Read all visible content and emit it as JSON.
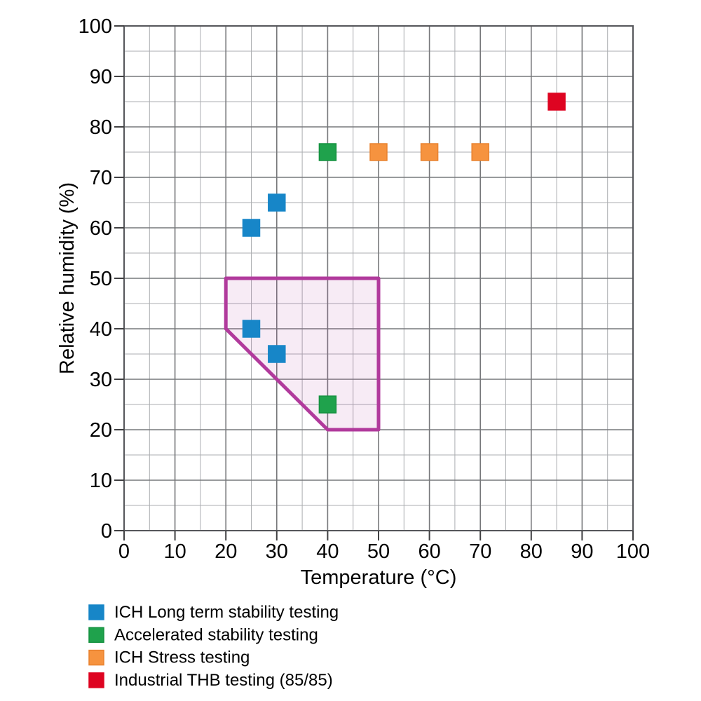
{
  "chart_data": {
    "type": "scatter",
    "title": "",
    "xlabel": "Temperature (°C)",
    "ylabel": "Relative humidity (%)",
    "xlim": [
      0,
      100
    ],
    "ylim": [
      0,
      100
    ],
    "xticks": [
      0,
      10,
      20,
      30,
      40,
      50,
      60,
      70,
      80,
      90,
      100
    ],
    "yticks": [
      0,
      10,
      20,
      30,
      40,
      50,
      60,
      70,
      80,
      90,
      100
    ],
    "grid": {
      "on": true,
      "minor_step": 5,
      "major_step": 10,
      "minor_color": "#ABADB0",
      "major_color": "#77787B"
    },
    "marker": {
      "shape": "square",
      "size": 24
    },
    "series": [
      {
        "name": "ICH Long term stability testing",
        "color": "#1786C8",
        "edge": "#1786C8",
        "points": [
          [
            25,
            60
          ],
          [
            30,
            65
          ],
          [
            25,
            40
          ],
          [
            30,
            35
          ]
        ]
      },
      {
        "name": "Accelerated stability testing",
        "color": "#1FA24C",
        "edge": "#14913F",
        "points": [
          [
            40,
            75
          ],
          [
            40,
            25
          ]
        ]
      },
      {
        "name": "ICH Stress testing",
        "color": "#F6933F",
        "edge": "#E8822F",
        "points": [
          [
            50,
            75
          ],
          [
            60,
            75
          ],
          [
            70,
            75
          ]
        ]
      },
      {
        "name": "Industrial THB testing (85/85)",
        "color": "#DE0421",
        "edge": "#DE0421",
        "points": [
          [
            85,
            85
          ]
        ]
      }
    ],
    "region": {
      "name": "highlighted-humidity-temperature-region",
      "vertices": [
        [
          20,
          50
        ],
        [
          50,
          50
        ],
        [
          50,
          20
        ],
        [
          40,
          20
        ],
        [
          20,
          40
        ]
      ],
      "stroke_color": "#B13A9C",
      "fill_color": "rgba(177, 58, 156, 0.10)",
      "stroke_width": 5
    },
    "legend_position": "bottom-left"
  }
}
